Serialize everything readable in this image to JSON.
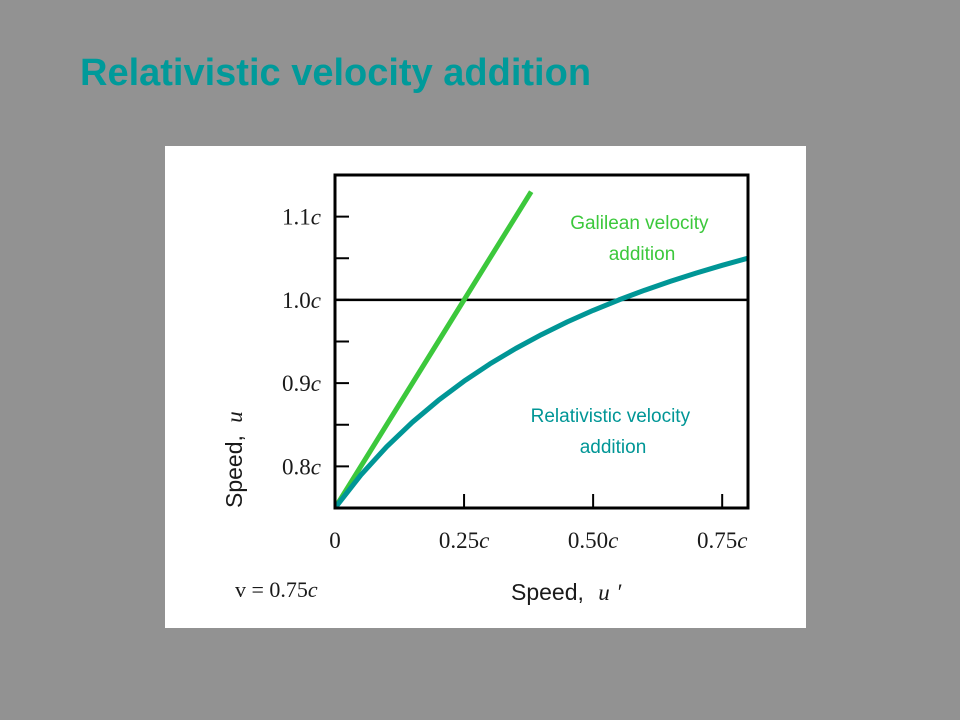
{
  "slide": {
    "title": "Relativistic velocity addition",
    "title_color": "#009A9A",
    "background_color": "#929292"
  },
  "chart_data": {
    "type": "line",
    "x_axis": {
      "range": [
        0,
        0.8
      ],
      "ticks": [
        0,
        0.25,
        0.5,
        0.75
      ],
      "tick_labels": [
        {
          "num": "0",
          "c": ""
        },
        {
          "num": "0.25",
          "c": "c"
        },
        {
          "num": "0.50",
          "c": "c"
        },
        {
          "num": "0.75",
          "c": "c"
        }
      ],
      "label_text": "Speed,",
      "label_var": "u",
      "label_prime": "′"
    },
    "y_axis": {
      "range": [
        0.75,
        1.15
      ],
      "ticks": [
        0.8,
        0.85,
        0.9,
        0.95,
        1.0,
        1.05,
        1.1
      ],
      "tick_labels": [
        {
          "value": 0.8,
          "num": "0.8",
          "c": "c"
        },
        {
          "value": 0.9,
          "num": "0.9",
          "c": "c"
        },
        {
          "value": 1.0,
          "num": "1.0",
          "c": "c"
        },
        {
          "value": 1.1,
          "num": "1.1",
          "c": "c"
        }
      ],
      "label_text": "Speed,",
      "label_var": "u"
    },
    "reference_line": {
      "y": 1.0,
      "color": "#000000"
    },
    "parameter": {
      "text": "v = 0.75",
      "c": "c",
      "v": 0.75
    },
    "series": [
      {
        "id": "galilean",
        "label_line1": "Galilean velocity",
        "label_line2": "addition",
        "color": "#3CC83C",
        "x": [
          0,
          0.1,
          0.2,
          0.3,
          0.38
        ],
        "y": [
          0.75,
          0.85,
          0.95,
          1.05,
          1.13
        ]
      },
      {
        "id": "relativistic",
        "label_line1": "Relativistic velocity",
        "label_line2": "addition",
        "color": "#009696",
        "x": [
          0,
          0.05,
          0.1,
          0.15,
          0.2,
          0.25,
          0.3,
          0.35,
          0.4,
          0.45,
          0.5,
          0.55,
          0.6,
          0.65,
          0.7,
          0.75,
          0.8
        ],
        "y": [
          0.75,
          0.7895,
          0.8235,
          0.8531,
          0.8793,
          0.9024,
          0.9231,
          0.9416,
          0.9583,
          0.9735,
          0.9873,
          1.0,
          1.0116,
          1.0223,
          1.0323,
          1.0415,
          1.05
        ]
      }
    ]
  }
}
